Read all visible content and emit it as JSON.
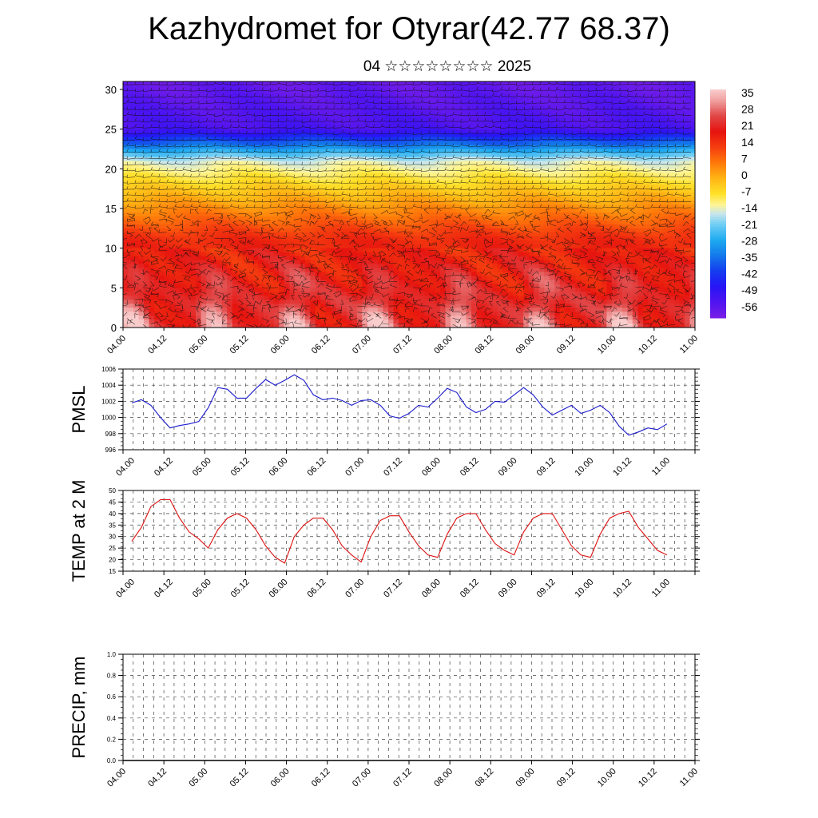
{
  "header": {
    "title": "Kazhydromet for Otyrar(42.77 68.37)",
    "subtitle": "04 ☆☆☆☆☆☆☆☆ 2025"
  },
  "colors": {
    "pmsl_line": "#1a1acc",
    "temp_line": "#dd1111",
    "precip_line": "#000000"
  },
  "chart_data": [
    {
      "id": "cross-section",
      "type": "heatmap",
      "y_ticks": [
        "0",
        "5",
        "10",
        "15",
        "20",
        "25",
        "30"
      ],
      "ylim": [
        0,
        31
      ],
      "x_ticks": [
        "04.00",
        "04.12",
        "05.00",
        "05.12",
        "06.00",
        "06.12",
        "07.00",
        "07.12",
        "08.00",
        "08.12",
        "09.00",
        "09.12",
        "10.00",
        "10.12",
        "11.00"
      ],
      "colorbar_labels": [
        "35",
        "28",
        "21",
        "14",
        "7",
        "0",
        "-7",
        "-14",
        "-21",
        "-28",
        "-35",
        "-42",
        "-49",
        "-56"
      ],
      "colorbar_range": [
        -63,
        40
      ],
      "overlay": "wind barbs"
    },
    {
      "id": "pmsl",
      "type": "line",
      "ylabel": "PMSL",
      "ylim": [
        996,
        1006
      ],
      "y_ticks": [
        "996",
        "998",
        "1000",
        "1002",
        "1004",
        "1006"
      ],
      "x_ticks": [
        "04.00",
        "04.12",
        "05.00",
        "05.12",
        "06.00",
        "06.12",
        "07.00",
        "07.12",
        "08.00",
        "08.12",
        "09.00",
        "09.12",
        "10.00",
        "10.12",
        "11.00"
      ],
      "step_hours": 3,
      "values": [
        1001.8,
        1002.2,
        1001.5,
        1000.0,
        998.7,
        999.0,
        999.2,
        999.5,
        1001.2,
        1003.7,
        1003.5,
        1002.4,
        1002.4,
        1003.6,
        1004.7,
        1004.0,
        1004.6,
        1005.3,
        1004.6,
        1002.8,
        1002.2,
        1002.4,
        1002.1,
        1001.5,
        1002.1,
        1002.2,
        1001.5,
        1000.2,
        999.9,
        1000.5,
        1001.5,
        1001.3,
        1002.4,
        1003.6,
        1003.1,
        1001.3,
        1000.6,
        1001.0,
        1002.0,
        1001.9,
        1002.8,
        1003.7,
        1002.8,
        1001.3,
        1000.3,
        1000.9,
        1001.5,
        1000.5,
        1000.9,
        1001.5,
        1000.6,
        998.9,
        997.8,
        998.2,
        998.7,
        998.5,
        999.2
      ],
      "grid": true
    },
    {
      "id": "temp",
      "type": "line",
      "ylabel": "TEMP at 2 M",
      "ylim": [
        15,
        50
      ],
      "y_ticks": [
        "15",
        "20",
        "25",
        "30",
        "35",
        "40",
        "45",
        "50"
      ],
      "x_ticks": [
        "04.00",
        "04.12",
        "05.00",
        "05.12",
        "06.00",
        "06.12",
        "07.00",
        "07.12",
        "08.00",
        "08.12",
        "09.00",
        "09.12",
        "10.00",
        "10.12",
        "11.00"
      ],
      "step_hours": 3,
      "values": [
        28,
        34,
        43,
        46,
        46,
        38,
        32,
        29,
        25,
        33,
        38,
        40,
        38,
        33,
        26,
        21,
        18.5,
        30,
        35,
        38,
        38,
        33,
        26,
        22,
        19,
        30,
        37,
        39,
        39,
        32,
        26,
        22,
        21,
        31,
        38,
        40,
        40,
        33,
        27,
        24,
        22,
        32,
        38,
        40,
        40,
        33,
        26,
        22,
        21,
        31,
        38,
        40,
        41,
        34,
        29,
        24,
        22
      ],
      "grid": true
    },
    {
      "id": "precip",
      "type": "line",
      "ylabel": "PRECIP, mm",
      "ylim": [
        0,
        1
      ],
      "y_ticks": [
        "0.0",
        "0.2",
        "0.4",
        "0.6",
        "0.8",
        "1.0"
      ],
      "x_ticks": [
        "04.00",
        "04.12",
        "05.00",
        "05.12",
        "06.00",
        "06.12",
        "07.00",
        "07.12",
        "08.00",
        "08.12",
        "09.00",
        "09.12",
        "10.00",
        "10.12",
        "11.00"
      ],
      "values": [
        0,
        0
      ],
      "grid": true
    }
  ]
}
